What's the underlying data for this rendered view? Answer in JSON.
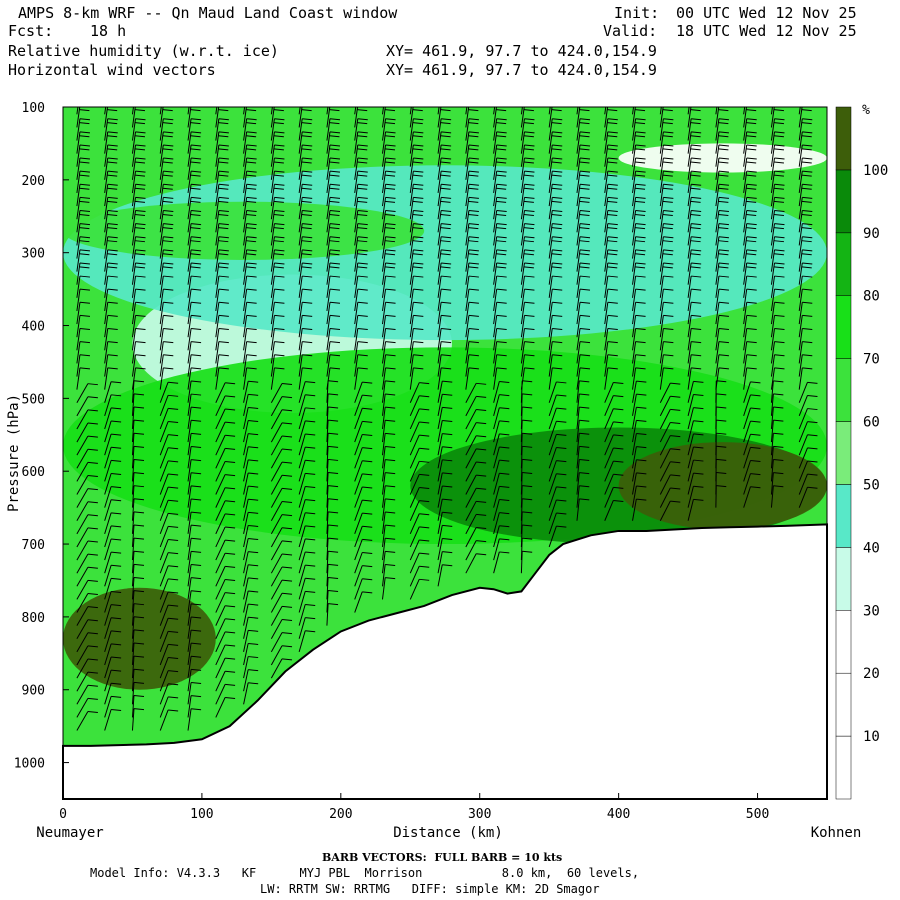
{
  "header": {
    "title": "AMPS 8-km WRF -- Qn Maud Land Coast window",
    "fcst_label": "Fcst:",
    "fcst_value": "18 h",
    "field1": "Relative humidity (w.r.t. ice)",
    "field2": "Horizontal wind vectors",
    "init_label": "Init:",
    "init_value": "00 UTC Wed 12 Nov 25",
    "valid_label": "Valid:",
    "valid_value": "18 UTC Wed 12 Nov 25",
    "xy1": "XY= 461.9, 97.7 to 424.0,154.9",
    "xy2": "XY= 461.9, 97.7 to 424.0,154.9"
  },
  "footer": {
    "barb_note": "BARB VECTORS:  FULL BARB = 10 kts",
    "model_line1": "Model Info: V4.3.3   KF      MYJ PBL  Morrison           8.0 km,  60 levels,",
    "model_line2": "LW: RRTM SW: RRTMG   DIFF: simple KM: 2D Smagor"
  },
  "colors": {
    "rh_bins": [
      "#ffffff",
      "#ffffff",
      "#ffffff",
      "#c8fbe8",
      "#58e8c8",
      "#7aec7a",
      "#3ce23c",
      "#18e018",
      "#14b414",
      "#0a8a0a",
      "#3d5e0a"
    ],
    "terrain": "#ffffff",
    "barb": "#000000"
  },
  "chart_data": {
    "type": "heatmap",
    "title": "Relative humidity (w.r.t. ice)",
    "xlabel": "Distance (km)",
    "ylabel": "Pressure (hPa)",
    "x_range": [
      0,
      550
    ],
    "y_range": [
      100,
      1050
    ],
    "y_scale": "linear-inverted",
    "x_ticks": [
      0,
      100,
      200,
      300,
      400,
      500
    ],
    "y_ticks": [
      100,
      200,
      300,
      400,
      500,
      600,
      700,
      800,
      900,
      1000
    ],
    "x_end_labels": [
      "Neumayer",
      "Kohnen"
    ],
    "colorbar": {
      "unit": "%",
      "levels": [
        10,
        20,
        30,
        40,
        50,
        60,
        70,
        80,
        90,
        100
      ]
    },
    "terrain_surface": {
      "distance_km": [
        0,
        20,
        40,
        60,
        80,
        100,
        120,
        140,
        160,
        180,
        200,
        220,
        240,
        260,
        280,
        300,
        310,
        320,
        330,
        340,
        350,
        360,
        380,
        400,
        420,
        440,
        460,
        480,
        500,
        520,
        550
      ],
      "pressure_hpa": [
        977,
        977,
        976,
        975,
        973,
        968,
        950,
        915,
        875,
        845,
        820,
        805,
        795,
        785,
        770,
        760,
        762,
        768,
        765,
        740,
        715,
        700,
        688,
        682,
        682,
        680,
        678,
        677,
        676,
        675,
        673
      ]
    },
    "rh_regions": [
      {
        "level": 20,
        "pressure_top": 150,
        "pressure_bottom": 190,
        "x_from": 400,
        "x_to": 550
      },
      {
        "level": 30,
        "pressure_top": 330,
        "pressure_bottom": 520,
        "x_from": 50,
        "x_to": 280
      },
      {
        "level": 40,
        "pressure_top": 180,
        "pressure_bottom": 420,
        "x_from": 0,
        "x_to": 550
      },
      {
        "level": 60,
        "pressure_top": 230,
        "pressure_bottom": 310,
        "x_from": 0,
        "x_to": 260
      },
      {
        "level": 70,
        "pressure_top": 430,
        "pressure_bottom": 700,
        "x_from": 0,
        "x_to": 550
      },
      {
        "level": 90,
        "pressure_top": 540,
        "pressure_bottom": 700,
        "x_from": 250,
        "x_to": 550
      },
      {
        "level": 100,
        "pressure_top": 560,
        "pressure_bottom": 680,
        "x_from": 400,
        "x_to": 550
      },
      {
        "level": 100,
        "pressure_top": 760,
        "pressure_bottom": 900,
        "x_from": 0,
        "x_to": 110
      }
    ],
    "wind_barbs": {
      "columns_km": [
        10,
        30,
        50,
        70,
        90,
        110,
        130,
        150,
        170,
        190,
        210,
        230,
        250,
        270,
        290,
        310,
        330,
        350,
        370,
        390,
        410,
        430,
        450,
        470,
        490,
        510,
        530
      ],
      "full_barb_kts": 10
    }
  }
}
